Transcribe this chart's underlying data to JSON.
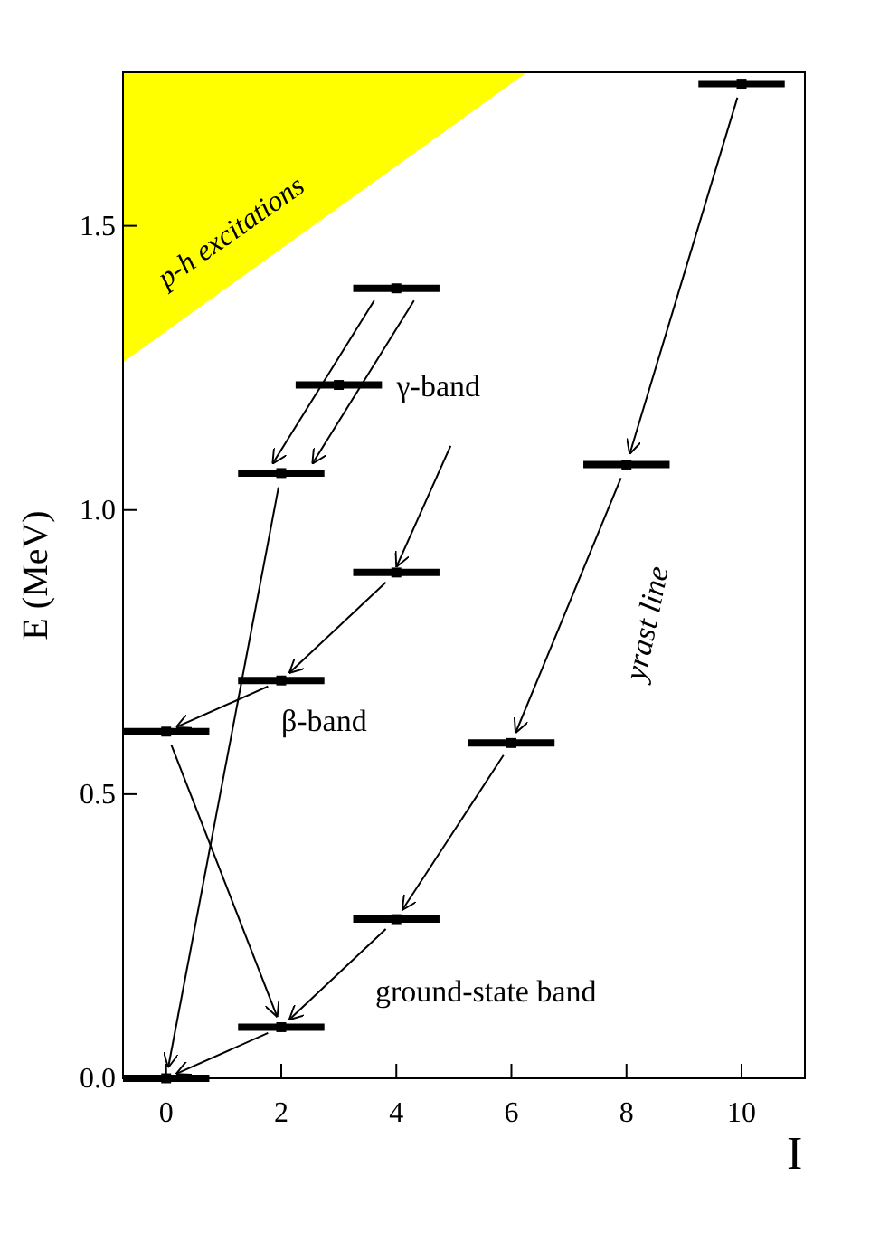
{
  "chart_data": {
    "type": "scatter",
    "xlabel": "I",
    "ylabel": "E (MeV)",
    "xlim": [
      -0.75,
      11.1
    ],
    "ylim": [
      0,
      1.77
    ],
    "xticks": [
      0,
      2,
      4,
      6,
      8,
      10
    ],
    "yticks": [
      {
        "value": 0,
        "label": "0.0"
      },
      {
        "value": 0.5,
        "label": "0.5"
      },
      {
        "value": 1,
        "label": "1.0"
      },
      {
        "value": 1.5,
        "label": "1.5"
      }
    ],
    "series": [
      {
        "name": "ground-state band",
        "color": "#000000",
        "x": [
          0,
          2,
          4,
          6,
          8,
          10
        ],
        "values": [
          0,
          0.09,
          0.28,
          0.59,
          1.08,
          1.75
        ],
        "xerrors": [
          0.75,
          0.75,
          0.75,
          0.75,
          0.75,
          0.75
        ]
      },
      {
        "name": "β-band",
        "color": "#000000",
        "x": [
          0,
          2,
          4
        ],
        "values": [
          0.61,
          0.7,
          0.89
        ],
        "xerrors": [
          0.75,
          0.75,
          0.75
        ]
      },
      {
        "name": "γ-band",
        "color": "#000000",
        "x": [
          2,
          3,
          4
        ],
        "values": [
          1.065,
          1.22,
          1.39
        ],
        "xerrors": [
          0.75,
          0.75,
          0.75
        ]
      }
    ],
    "annotations": [
      "yrast line",
      "p-h excitations"
    ],
    "marker": "square"
  }
}
